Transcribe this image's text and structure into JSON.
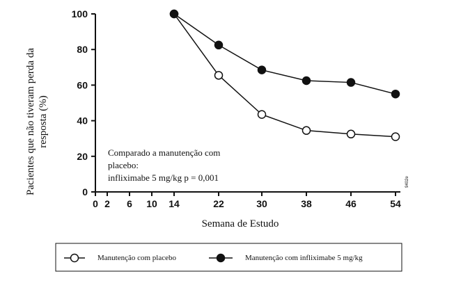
{
  "chart_data": {
    "type": "line",
    "xlabel": "Semana de Estudo",
    "ylabel_lines": [
      "Pacientes que não tiveram perda da",
      "resposta (%)"
    ],
    "x_ticks": [
      0,
      2,
      6,
      10,
      14,
      22,
      30,
      38,
      46,
      54
    ],
    "y_ticks": [
      0,
      20,
      40,
      60,
      80,
      100
    ],
    "ylim": [
      0,
      100
    ],
    "series": [
      {
        "name": "Manutenção com placebo",
        "marker": "open-circle",
        "color": "#111111",
        "x": [
          14,
          22,
          30,
          38,
          46,
          54
        ],
        "values": [
          100,
          65.5,
          43.5,
          34.5,
          32.5,
          31
        ]
      },
      {
        "name": "Manutenção com infliximabe 5 mg/kg",
        "marker": "filled-circle",
        "color": "#111111",
        "x": [
          14,
          22,
          30,
          38,
          46,
          54
        ],
        "values": [
          100,
          82.5,
          68.5,
          62.5,
          61.5,
          55
        ]
      }
    ],
    "annotation_lines": [
      "Comparado a manutenção com",
      "placebo:",
      "infliximabe 5 mg/kg  p = 0,001"
    ],
    "figure_code": "9402e",
    "legend_position": "bottom"
  }
}
